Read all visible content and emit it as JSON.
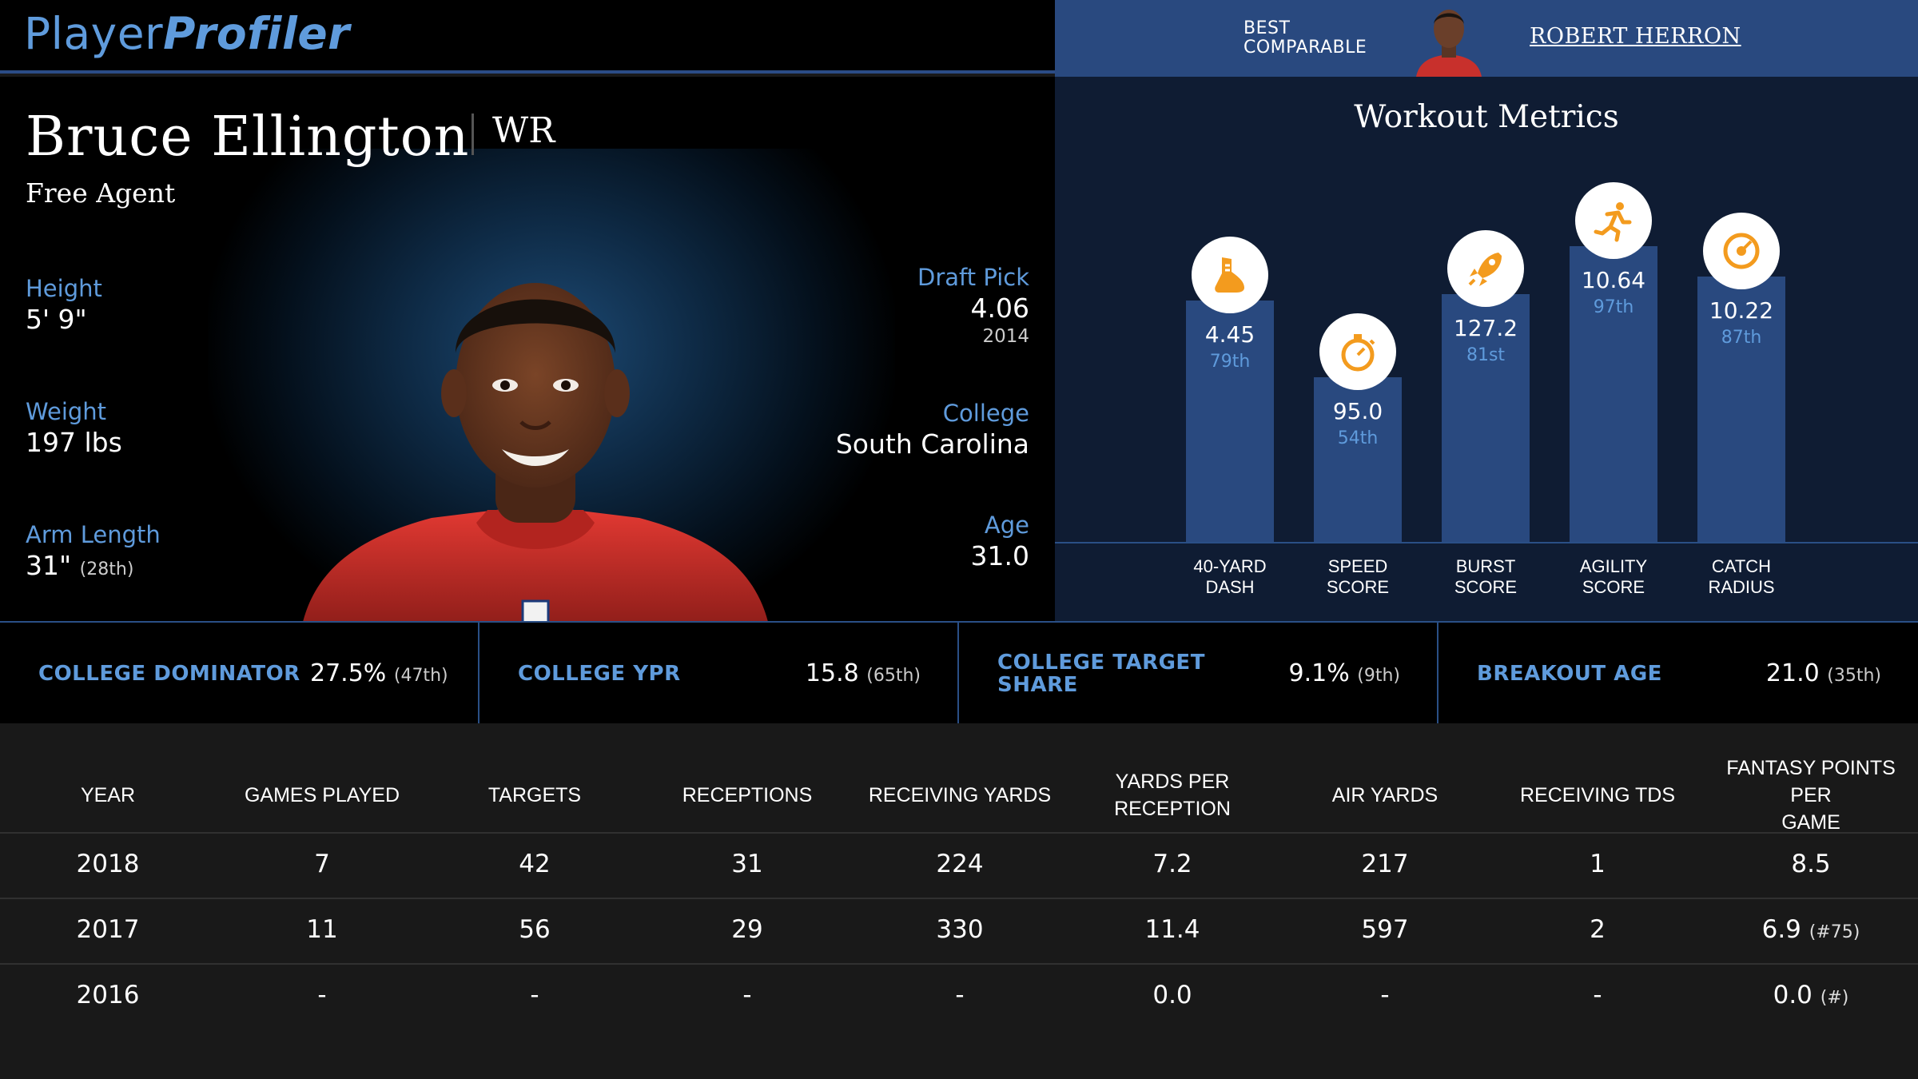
{
  "brand": {
    "part1": "Player",
    "part2": "Profiler"
  },
  "comparable": {
    "label_line1": "BEST",
    "label_line2": "COMPARABLE",
    "name": "ROBERT HERRON"
  },
  "player": {
    "name": "Bruce Ellington",
    "position": "WR",
    "team": "Free Agent",
    "height_label": "Height",
    "height": "5' 9\"",
    "weight_label": "Weight",
    "weight": "197 lbs",
    "arm_label": "Arm Length",
    "arm": "31\"",
    "arm_rank": "(28th)",
    "draft_label": "Draft Pick",
    "draft": "4.06",
    "draft_year": "2014",
    "college_label": "College",
    "college": "South Carolina",
    "age_label": "Age",
    "age": "31.0"
  },
  "workout": {
    "title": "Workout Metrics",
    "metrics": [
      {
        "line1": "40-YARD",
        "line2": "DASH",
        "value": "4.45",
        "pct": "79th",
        "icon": "running-shoe-icon"
      },
      {
        "line1": "SPEED",
        "line2": "SCORE",
        "value": "95.0",
        "pct": "54th",
        "icon": "stopwatch-icon"
      },
      {
        "line1": "BURST",
        "line2": "SCORE",
        "value": "127.2",
        "pct": "81st",
        "icon": "rocket-icon"
      },
      {
        "line1": "AGILITY",
        "line2": "SCORE",
        "value": "10.64",
        "pct": "97th",
        "icon": "runner-icon"
      },
      {
        "line1": "CATCH",
        "line2": "RADIUS",
        "value": "10.22",
        "pct": "87th",
        "icon": "target-icon"
      }
    ]
  },
  "college_stats": [
    {
      "label": "COLLEGE DOMINATOR",
      "value": "27.5%",
      "rank": "(47th)"
    },
    {
      "label": "COLLEGE YPR",
      "value": "15.8",
      "rank": "(65th)"
    },
    {
      "label_line1": "COLLEGE TARGET",
      "label_line2": "SHARE",
      "value": "9.1%",
      "rank": "(9th)"
    },
    {
      "label": "BREAKOUT AGE",
      "value": "21.0",
      "rank": "(35th)"
    }
  ],
  "season_table": {
    "headers": [
      "YEAR",
      "GAMES PLAYED",
      "TARGETS",
      "RECEPTIONS",
      "RECEIVING YARDS",
      "YARDS PER RECEPTION",
      "AIR YARDS",
      "RECEIVING TDS",
      "FANTASY POINTS PER",
      "GAME"
    ],
    "rows": [
      {
        "year": "2018",
        "games": "7",
        "targets": "42",
        "receptions": "31",
        "yards": "224",
        "ypr": "7.2",
        "air": "217",
        "tds": "1",
        "fpg": "8.5",
        "fpg_rank": ""
      },
      {
        "year": "2017",
        "games": "11",
        "targets": "56",
        "receptions": "29",
        "yards": "330",
        "ypr": "11.4",
        "air": "597",
        "tds": "2",
        "fpg": "6.9",
        "fpg_rank": "(#75)"
      },
      {
        "year": "2016",
        "games": "-",
        "targets": "-",
        "receptions": "-",
        "yards": "-",
        "ypr": "0.0",
        "air": "-",
        "tds": "-",
        "fpg": "0.0",
        "fpg_rank": "(#)"
      }
    ]
  },
  "colors": {
    "accent": "#5f9bdc",
    "bar": "#29497f",
    "icon": "#f39b1e"
  }
}
